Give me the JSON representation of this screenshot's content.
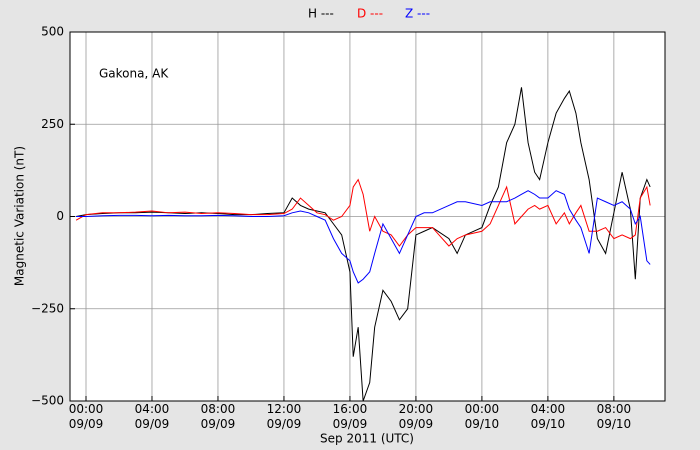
{
  "chart_data": {
    "type": "line",
    "annotation": "Gakona, AK",
    "xlabel": "Sep 2011 (UTC)",
    "ylabel": "Magnetic Variation (nT)",
    "x": [
      -0.6,
      0,
      1,
      2,
      3,
      4,
      5,
      6,
      7,
      8,
      9,
      10,
      11,
      12,
      12.5,
      13,
      13.5,
      14,
      14.5,
      15,
      15.5,
      16,
      16.2,
      16.5,
      16.8,
      17.2,
      17.5,
      18,
      18.5,
      19,
      19.5,
      20,
      20.5,
      21,
      22,
      22.5,
      23,
      24,
      24.5,
      25,
      25.5,
      26,
      26.4,
      26.8,
      27.2,
      27.5,
      28,
      28.5,
      29,
      29.3,
      29.7,
      30,
      30.5,
      31,
      31.5,
      32,
      32.5,
      33,
      33.3,
      33.6,
      34,
      34.2
    ],
    "series": [
      {
        "name": "H ---",
        "color": "#000000",
        "values": [
          0,
          5,
          8,
          10,
          10,
          12,
          10,
          8,
          10,
          8,
          5,
          5,
          8,
          10,
          50,
          30,
          20,
          15,
          10,
          -20,
          -50,
          -150,
          -380,
          -300,
          -500,
          -450,
          -300,
          -200,
          -230,
          -280,
          -250,
          -50,
          -40,
          -30,
          -60,
          -100,
          -50,
          -30,
          30,
          80,
          200,
          250,
          350,
          200,
          120,
          100,
          200,
          280,
          320,
          340,
          280,
          200,
          100,
          -60,
          -100,
          10,
          120,
          20,
          -170,
          50,
          100,
          80
        ]
      },
      {
        "name": "D ---",
        "color": "#ff0000",
        "values": [
          -10,
          5,
          10,
          10,
          12,
          15,
          10,
          12,
          8,
          10,
          8,
          5,
          5,
          8,
          20,
          50,
          30,
          10,
          5,
          -10,
          0,
          30,
          80,
          100,
          60,
          -40,
          0,
          -40,
          -50,
          -80,
          -50,
          -30,
          -30,
          -30,
          -80,
          -60,
          -50,
          -40,
          -20,
          30,
          80,
          -20,
          0,
          20,
          30,
          20,
          30,
          -20,
          10,
          -20,
          10,
          30,
          -40,
          -40,
          -30,
          -60,
          -50,
          -60,
          -50,
          50,
          80,
          30
        ]
      },
      {
        "name": "Z ---",
        "color": "#0000ff",
        "values": [
          0,
          0,
          2,
          3,
          3,
          2,
          3,
          2,
          2,
          3,
          2,
          0,
          0,
          2,
          10,
          15,
          10,
          0,
          -10,
          -60,
          -100,
          -120,
          -150,
          -180,
          -170,
          -150,
          -100,
          -20,
          -60,
          -100,
          -50,
          0,
          10,
          10,
          30,
          40,
          40,
          30,
          40,
          40,
          40,
          50,
          60,
          70,
          60,
          50,
          50,
          70,
          60,
          20,
          -10,
          -30,
          -100,
          50,
          40,
          30,
          40,
          20,
          -20,
          0,
          -120,
          -130
        ]
      }
    ],
    "xlim": [
      -0.97,
      35.1
    ],
    "xticks": [
      {
        "value": 0,
        "label": "00:00\n09/09"
      },
      {
        "value": 4,
        "label": "04:00\n09/09"
      },
      {
        "value": 8,
        "label": "08:00\n09/09"
      },
      {
        "value": 12,
        "label": "12:00\n09/09"
      },
      {
        "value": 16,
        "label": "16:00\n09/09"
      },
      {
        "value": 20,
        "label": "20:00\n09/09"
      },
      {
        "value": 24,
        "label": "00:00\n09/10"
      },
      {
        "value": 28,
        "label": "04:00\n09/10"
      },
      {
        "value": 32,
        "label": "08:00\n09/10"
      }
    ],
    "ylim": [
      -500,
      500
    ],
    "yticks": [
      {
        "value": -500,
        "label": "−500"
      },
      {
        "value": -250,
        "label": "−250"
      },
      0,
      250,
      500
    ],
    "grid": true
  }
}
